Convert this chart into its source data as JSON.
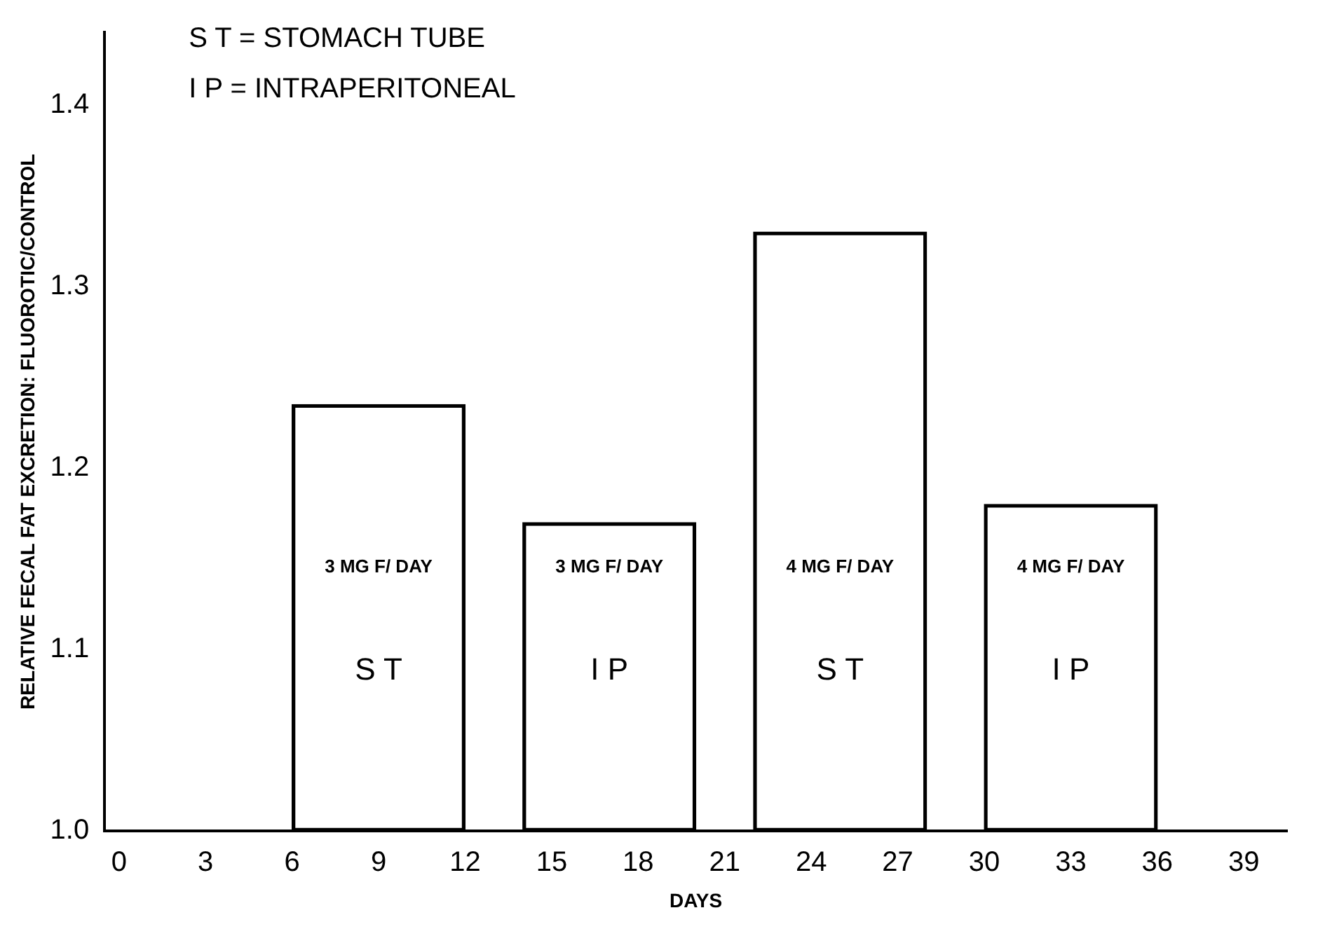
{
  "chart_data": {
    "type": "bar",
    "x": [
      9,
      17,
      25,
      33
    ],
    "values": [
      1.235,
      1.17,
      1.33,
      1.18
    ],
    "color": "#000000",
    "xlabel": "DAYS",
    "ylabel": "RELATIVE FECAL FAT EXCRETION: FLUOROTIC/CONTROL",
    "xlim": [
      -0.5,
      40.5
    ],
    "xticks": [
      0,
      3,
      6,
      9,
      12,
      15,
      18,
      21,
      24,
      27,
      30,
      33,
      36,
      39
    ],
    "ylim": [
      1.0,
      1.44
    ],
    "yticks": [
      {
        "value": 1.0,
        "label": "1.0"
      },
      {
        "value": 1.1,
        "label": "1.1"
      },
      {
        "value": 1.2,
        "label": "1.2"
      },
      {
        "value": 1.3,
        "label": "1.3"
      },
      {
        "value": 1.4,
        "label": "1.4"
      }
    ],
    "grid": false,
    "legend": false,
    "annotations": [
      "S T = STOMACH TUBE",
      "I P = INTRAPERITONEAL",
      "3 MG F/ DAY",
      "S T",
      "3 MG F/ DAY",
      "I P",
      "4 MG F/ DAY",
      "S T",
      "4 MG F/ DAY",
      "I P"
    ]
  }
}
